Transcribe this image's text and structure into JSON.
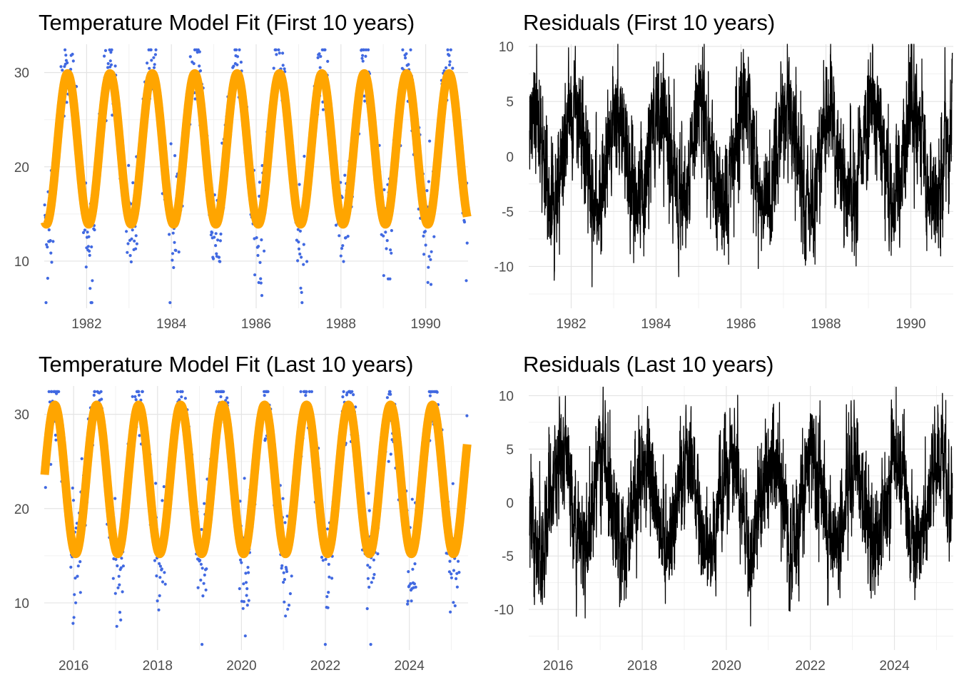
{
  "figure": {
    "panels": [
      {
        "id": "fit-first",
        "title": "Temperature Model Fit (First 10 years)"
      },
      {
        "id": "resid-first",
        "title": "Residuals (First 10 years)"
      },
      {
        "id": "fit-last",
        "title": "Temperature Model Fit (Last 10 years)"
      },
      {
        "id": "resid-last",
        "title": "Residuals (Last 10 years)"
      }
    ]
  },
  "chart_data": [
    {
      "type": "scatter",
      "title": "Temperature Model Fit (First 10 years)",
      "xlabel": "",
      "ylabel": "",
      "xlim": [
        1981.0,
        1991.0
      ],
      "ylim": [
        5,
        33
      ],
      "x_ticks": [
        "1982",
        "1984",
        "1986",
        "1988",
        "1990"
      ],
      "y_ticks": [
        "10",
        "20",
        "30"
      ],
      "grid": true,
      "colors": {
        "points": "#4169e1",
        "fit": "#ffa500"
      },
      "fit_model": {
        "mean": 21.9,
        "amplitude": 8.0,
        "period_years": 1.0,
        "peak_fraction_of_year": 0.55
      },
      "series": [
        {
          "kind": "points",
          "description_values": "daily observations (approx.)",
          "x": [
            1981.0,
            1981.1,
            1981.2,
            1981.3,
            1981.4,
            1981.5,
            1981.6,
            1981.7,
            1981.8,
            1981.9,
            1982.0,
            1982.1,
            1982.2,
            1982.3,
            1982.4,
            1982.5,
            1982.6,
            1982.7,
            1982.8,
            1982.9,
            1983.0,
            1983.1,
            1983.2,
            1983.3,
            1983.4,
            1983.5,
            1983.6,
            1983.7,
            1983.8,
            1983.9,
            1984.0,
            1984.1,
            1984.2,
            1984.3,
            1984.4,
            1984.5,
            1984.6,
            1984.7,
            1984.8,
            1984.9,
            1985.0,
            1985.1,
            1985.2,
            1985.3,
            1985.4,
            1985.5,
            1985.6,
            1985.7,
            1985.8,
            1985.9,
            1986.0,
            1986.1,
            1986.2,
            1986.3,
            1986.4,
            1986.5,
            1986.6,
            1986.7,
            1986.8,
            1986.9,
            1987.0,
            1987.1,
            1987.2,
            1987.3,
            1987.4,
            1987.5,
            1987.6,
            1987.7,
            1987.8,
            1987.9,
            1988.0,
            1988.1,
            1988.2,
            1988.3,
            1988.4,
            1988.5,
            1988.6,
            1988.7,
            1988.8,
            1988.9,
            1989.0,
            1989.1,
            1989.2,
            1989.3,
            1989.4,
            1989.5,
            1989.6,
            1989.7,
            1989.8,
            1989.9,
            1990.0,
            1990.1,
            1990.2,
            1990.3,
            1990.4,
            1990.5,
            1990.6,
            1990.7,
            1990.8,
            1990.9,
            1991.0
          ],
          "y": [
            12,
            10,
            18,
            22,
            27,
            30,
            29,
            26,
            21,
            16,
            11,
            13,
            17,
            23,
            27,
            28,
            28,
            24,
            20,
            15,
            12,
            12,
            18,
            22,
            26,
            28,
            28,
            24,
            20,
            16,
            11,
            12,
            17,
            23,
            27,
            28,
            28,
            25,
            21,
            16,
            12,
            13,
            18,
            23,
            28,
            30,
            29,
            25,
            21,
            16,
            11,
            12,
            17,
            22,
            26,
            28,
            28,
            25,
            20,
            15,
            12,
            12,
            17,
            23,
            27,
            29,
            29,
            25,
            21,
            16,
            11,
            12,
            17,
            22,
            26,
            29,
            28,
            24,
            20,
            16,
            11,
            13,
            18,
            23,
            27,
            29,
            28,
            25,
            20,
            15,
            12,
            12,
            17,
            22,
            27,
            29,
            28,
            24,
            20,
            15,
            14
          ]
        },
        {
          "kind": "line",
          "name": "",
          "description_values": "fitted sinusoid, range approx. 14 to 30"
        }
      ]
    },
    {
      "type": "line",
      "title": "Residuals (First 10 years)",
      "xlabel": "",
      "ylabel": "",
      "xlim": [
        1981.0,
        1991.0
      ],
      "ylim": [
        -13.8,
        10.2
      ],
      "x_ticks": [
        "1982",
        "1984",
        "1986",
        "1988",
        "1990"
      ],
      "y_ticks": [
        "-10",
        "-5",
        "0",
        "5",
        "10"
      ],
      "grid": true,
      "colors": {
        "line": "#000000"
      },
      "summary": {
        "min": -13.5,
        "max": 10.2,
        "pattern": "seasonal, alternating positive peaks near year start and negative troughs mid-year"
      }
    },
    {
      "type": "scatter",
      "title": "Temperature Model Fit (Last 10 years)",
      "xlabel": "",
      "ylabel": "",
      "xlim": [
        2015.3,
        2025.4
      ],
      "ylim": [
        5,
        33
      ],
      "x_ticks": [
        "2016",
        "2018",
        "2020",
        "2022",
        "2024"
      ],
      "y_ticks": [
        "10",
        "20",
        "30"
      ],
      "grid": true,
      "colors": {
        "points": "#4169e1",
        "fit": "#ffa500"
      },
      "fit_model": {
        "mean": 23.1,
        "amplitude": 7.9,
        "period_years": 1.0,
        "peak_fraction_of_year": 0.55
      },
      "series": [
        {
          "kind": "points",
          "description_values": "daily observations (approx.)",
          "x": [
            2015.4,
            2015.5,
            2015.6,
            2015.7,
            2015.8,
            2015.9,
            2016.0,
            2016.1,
            2016.2,
            2016.3,
            2016.4,
            2016.5,
            2016.6,
            2016.7,
            2016.8,
            2016.9,
            2017.0,
            2017.1,
            2017.2,
            2017.3,
            2017.4,
            2017.5,
            2017.6,
            2017.7,
            2017.8,
            2017.9,
            2018.0,
            2018.1,
            2018.2,
            2018.3,
            2018.4,
            2018.5,
            2018.6,
            2018.7,
            2018.8,
            2018.9,
            2019.0,
            2019.1,
            2019.2,
            2019.3,
            2019.4,
            2019.5,
            2019.6,
            2019.7,
            2019.8,
            2019.9,
            2020.0,
            2020.1,
            2020.2,
            2020.3,
            2020.4,
            2020.5,
            2020.6,
            2020.7,
            2020.8,
            2020.9,
            2021.0,
            2021.1,
            2021.2,
            2021.3,
            2021.4,
            2021.5,
            2021.6,
            2021.7,
            2021.8,
            2021.9,
            2022.0,
            2022.1,
            2022.2,
            2022.3,
            2022.4,
            2022.5,
            2022.6,
            2022.7,
            2022.8,
            2022.9,
            2023.0,
            2023.1,
            2023.2,
            2023.3,
            2023.4,
            2023.5,
            2023.6,
            2023.7,
            2023.8,
            2023.9,
            2024.0,
            2024.1,
            2024.2,
            2024.3,
            2024.4,
            2024.5,
            2024.6,
            2024.7,
            2024.8,
            2024.9,
            2025.0,
            2025.1,
            2025.2,
            2025.3
          ],
          "y": [
            27,
            29,
            29,
            26,
            21,
            17,
            12,
            14,
            19,
            25,
            28,
            29,
            28,
            25,
            20,
            16,
            12,
            14,
            20,
            25,
            28,
            29,
            28,
            25,
            20,
            15,
            11,
            14,
            19,
            24,
            28,
            29,
            29,
            25,
            21,
            16,
            12,
            14,
            20,
            25,
            28,
            30,
            29,
            26,
            21,
            16,
            13,
            15,
            20,
            25,
            28,
            30,
            29,
            25,
            21,
            17,
            13,
            15,
            20,
            25,
            28,
            30,
            29,
            26,
            21,
            16,
            12,
            15,
            21,
            26,
            29,
            30,
            29,
            26,
            21,
            17,
            13,
            15,
            20,
            25,
            29,
            31,
            30,
            26,
            21,
            16,
            12,
            14,
            20,
            26,
            29,
            31,
            30,
            26,
            21,
            16,
            12,
            15,
            22,
            25
          ]
        },
        {
          "kind": "line",
          "name": "",
          "description_values": "fitted sinusoid, range approx. 15 to 31"
        }
      ]
    },
    {
      "type": "line",
      "title": "Residuals (Last 10 years)",
      "xlabel": "",
      "ylabel": "",
      "xlim": [
        2015.3,
        2025.4
      ],
      "ylim": [
        -13.8,
        10.9
      ],
      "x_ticks": [
        "2016",
        "2018",
        "2020",
        "2022",
        "2024"
      ],
      "y_ticks": [
        "-10",
        "-5",
        "0",
        "5",
        "10"
      ],
      "grid": true,
      "colors": {
        "line": "#000000"
      },
      "summary": {
        "min": -13.4,
        "max": 10.8,
        "pattern": "seasonal, alternating positive peaks near year start and negative troughs mid-year"
      }
    }
  ]
}
